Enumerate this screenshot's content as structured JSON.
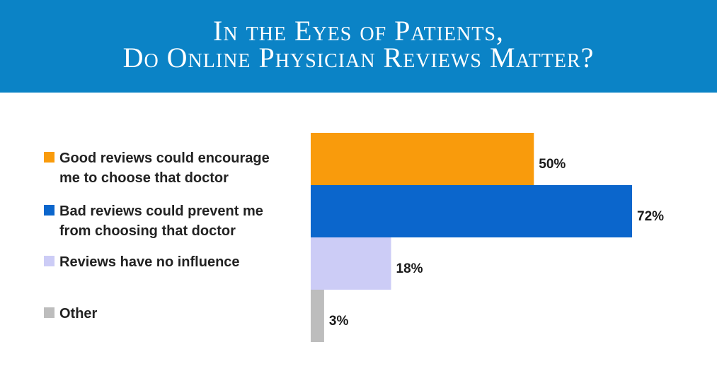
{
  "title": {
    "line1": "In the Eyes of Patients,",
    "line2": "Do Online Physician Reviews Matter?"
  },
  "colors": {
    "banner": "#0b83c6",
    "good": "#f99b0c",
    "bad": "#0b66cc",
    "none": "#ccccf6",
    "other": "#bdbdbd"
  },
  "legend": [
    {
      "label": "Good reviews could encourage\nme to choose that doctor"
    },
    {
      "label": "Bad reviews could prevent me\nfrom choosing that doctor"
    },
    {
      "label": "Reviews have no influence"
    },
    {
      "label": "Other"
    }
  ],
  "chart_data": {
    "type": "bar",
    "orientation": "horizontal",
    "categories": [
      "Good reviews could encourage me to choose that doctor",
      "Bad reviews could prevent me from choosing that doctor",
      "Reviews have no influence",
      "Other"
    ],
    "values": [
      50,
      72,
      18,
      3
    ],
    "value_labels": [
      "50%",
      "72%",
      "18%",
      "3%"
    ],
    "colors": [
      "#f99b0c",
      "#0b66cc",
      "#ccccf6",
      "#bdbdbd"
    ],
    "unit": "%",
    "xlim": [
      0,
      72
    ],
    "grid": false,
    "legend_position": "left"
  }
}
